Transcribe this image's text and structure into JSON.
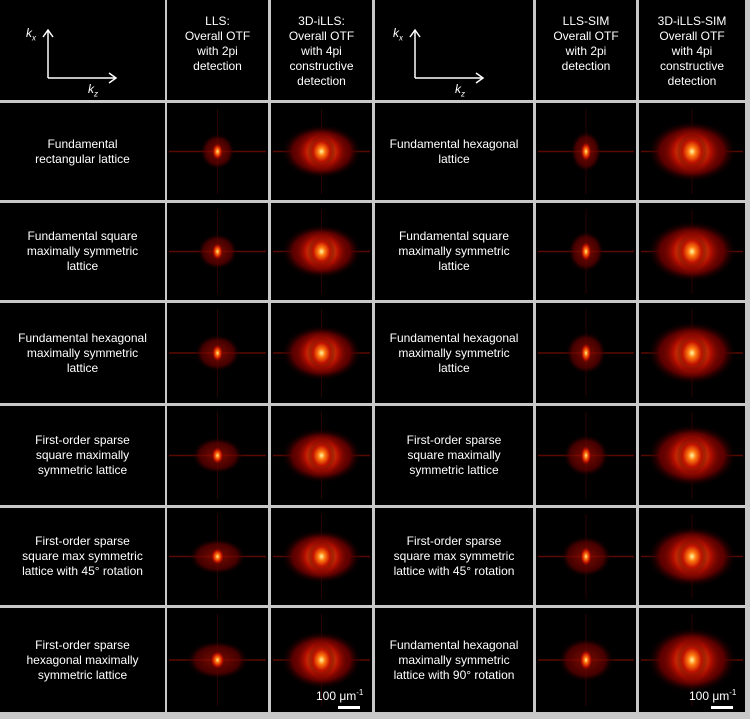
{
  "axes": [
    {
      "vertical": "k",
      "vertical_sub": "x",
      "horizontal": "k",
      "horizontal_sub": "z"
    },
    {
      "vertical": "k",
      "vertical_sub": "x",
      "horizontal": "k",
      "horizontal_sub": "z"
    }
  ],
  "columns": [
    [
      "LLS:",
      "Overall OTF",
      "with 2pi",
      "detection"
    ],
    [
      "3D-iLLS:",
      "Overall OTF",
      "with 4pi",
      "constructive",
      "detection"
    ],
    [
      "LLS-SIM",
      "Overall OTF",
      "with 2pi",
      "detection"
    ],
    [
      "3D-iLLS-SIM",
      "Overall OTF",
      "with 4pi",
      "constructive",
      "detection"
    ]
  ],
  "left_rows": [
    [
      "Fundamental",
      "rectangular lattice"
    ],
    [
      "Fundamental square",
      "maximally symmetric",
      "lattice"
    ],
    [
      "Fundamental hexagonal",
      "maximally symmetric",
      "lattice"
    ],
    [
      "First-order sparse",
      "square maximally",
      "symmetric lattice"
    ],
    [
      "First-order sparse",
      "square max symmetric",
      "lattice with 45° rotation"
    ],
    [
      "First-order sparse",
      "hexagonal maximally",
      "symmetric lattice"
    ]
  ],
  "right_rows": [
    [
      "Fundamental hexagonal",
      "lattice"
    ],
    [
      "Fundamental square",
      "maximally symmetric",
      "lattice"
    ],
    [
      "Fundamental hexagonal",
      "maximally symmetric",
      "lattice"
    ],
    [
      "First-order sparse",
      "square maximally",
      "symmetric lattice"
    ],
    [
      "First-order sparse",
      "square max symmetric",
      "lattice with 45° rotation"
    ],
    [
      "Fundamental hexagonal",
      "maximally symmetric",
      "lattice with 90° rotation"
    ]
  ],
  "scale_bars": [
    {
      "label": "100 μm",
      "superscript": "-1"
    },
    {
      "label": "100 μm",
      "superscript": "-1"
    }
  ]
}
